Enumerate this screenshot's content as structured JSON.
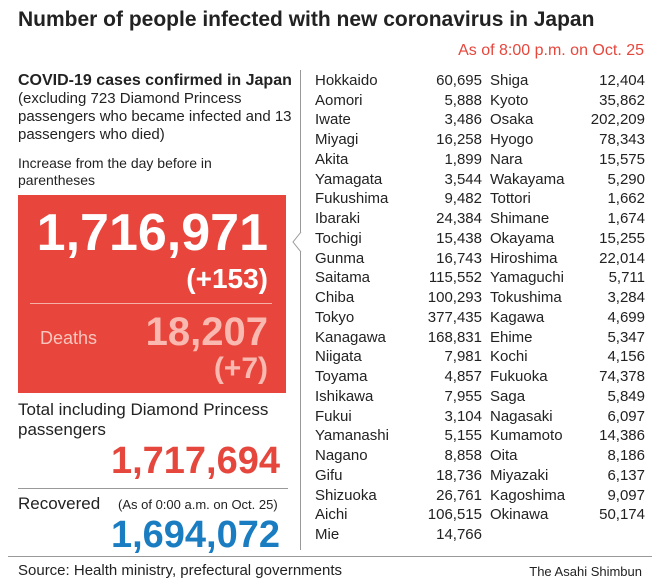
{
  "title": "Number of people infected with new coronavirus in Japan",
  "as_of": "As of 8:00 p.m. on Oct. 25",
  "summary": {
    "heading": "COVID-19 cases confirmed in Japan",
    "heading_note": "(excluding 723 Diamond Princess passengers who became infected and 13 passengers who died)",
    "increase_note": "Increase from the day before in parentheses",
    "cases": "1,716,971",
    "cases_increase": "(+153)",
    "deaths_label": "Deaths",
    "deaths": "18,207",
    "deaths_increase": "(+7)",
    "total_label": "Total including Diamond Princess passengers",
    "total": "1,717,694",
    "recovered_label": "Recovered",
    "recovered_note": "(As of 0:00 a.m. on Oct. 25)",
    "recovered": "1,694,072"
  },
  "prefectures": [
    {
      "name": "Hokkaido",
      "cases": "60,695"
    },
    {
      "name": "Aomori",
      "cases": "5,888"
    },
    {
      "name": "Iwate",
      "cases": "3,486"
    },
    {
      "name": "Miyagi",
      "cases": "16,258"
    },
    {
      "name": "Akita",
      "cases": "1,899"
    },
    {
      "name": "Yamagata",
      "cases": "3,544"
    },
    {
      "name": "Fukushima",
      "cases": "9,482"
    },
    {
      "name": "Ibaraki",
      "cases": "24,384"
    },
    {
      "name": "Tochigi",
      "cases": "15,438"
    },
    {
      "name": "Gunma",
      "cases": "16,743"
    },
    {
      "name": "Saitama",
      "cases": "115,552"
    },
    {
      "name": "Chiba",
      "cases": "100,293"
    },
    {
      "name": "Tokyo",
      "cases": "377,435"
    },
    {
      "name": "Kanagawa",
      "cases": "168,831"
    },
    {
      "name": "Niigata",
      "cases": "7,981"
    },
    {
      "name": "Toyama",
      "cases": "4,857"
    },
    {
      "name": "Ishikawa",
      "cases": "7,955"
    },
    {
      "name": "Fukui",
      "cases": "3,104"
    },
    {
      "name": "Yamanashi",
      "cases": "5,155"
    },
    {
      "name": "Nagano",
      "cases": "8,858"
    },
    {
      "name": "Gifu",
      "cases": "18,736"
    },
    {
      "name": "Shizuoka",
      "cases": "26,761"
    },
    {
      "name": "Aichi",
      "cases": "106,515"
    },
    {
      "name": "Mie",
      "cases": "14,766"
    },
    {
      "name": "Shiga",
      "cases": "12,404"
    },
    {
      "name": "Kyoto",
      "cases": "35,862"
    },
    {
      "name": "Osaka",
      "cases": "202,209"
    },
    {
      "name": "Hyogo",
      "cases": "78,343"
    },
    {
      "name": "Nara",
      "cases": "15,575"
    },
    {
      "name": "Wakayama",
      "cases": "5,290"
    },
    {
      "name": "Tottori",
      "cases": "1,662"
    },
    {
      "name": "Shimane",
      "cases": "1,674"
    },
    {
      "name": "Okayama",
      "cases": "15,255"
    },
    {
      "name": "Hiroshima",
      "cases": "22,014"
    },
    {
      "name": "Yamaguchi",
      "cases": "5,711"
    },
    {
      "name": "Tokushima",
      "cases": "3,284"
    },
    {
      "name": "Kagawa",
      "cases": "4,699"
    },
    {
      "name": "Ehime",
      "cases": "5,347"
    },
    {
      "name": "Kochi",
      "cases": "4,156"
    },
    {
      "name": "Fukuoka",
      "cases": "74,378"
    },
    {
      "name": "Saga",
      "cases": "5,849"
    },
    {
      "name": "Nagasaki",
      "cases": "6,097"
    },
    {
      "name": "Kumamoto",
      "cases": "14,386"
    },
    {
      "name": "Oita",
      "cases": "8,186"
    },
    {
      "name": "Miyazaki",
      "cases": "6,137"
    },
    {
      "name": "Kagoshima",
      "cases": "9,097"
    },
    {
      "name": "Okinawa",
      "cases": "50,174"
    }
  ],
  "source": "Source: Health ministry, prefectural governments",
  "credit": "The Asahi Shimbun"
}
